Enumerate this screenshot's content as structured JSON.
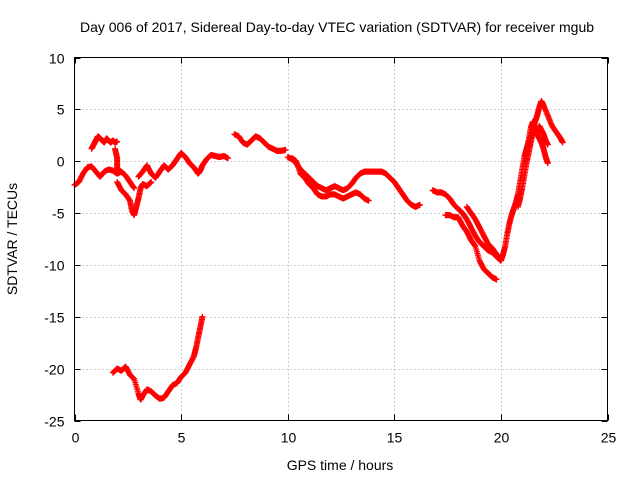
{
  "chart_data": {
    "type": "scatter",
    "title": "Day 006 of 2017, Sidereal Day-to-day VTEC variation (SDTVAR) for receiver mgub",
    "xlabel": "GPS time / hours",
    "ylabel": "SDTVAR / TECUs",
    "xlim": [
      0,
      25
    ],
    "ylim": [
      -25,
      10
    ],
    "xticks": [
      0,
      5,
      10,
      15,
      20,
      25
    ],
    "yticks": [
      -25,
      -20,
      -15,
      -10,
      -5,
      0,
      5,
      10
    ],
    "grid": true,
    "marker": "+",
    "color": "#ff0000",
    "series": [
      {
        "name": "seg1",
        "points": [
          [
            0.0,
            -2.3
          ],
          [
            0.2,
            -2.0
          ],
          [
            0.4,
            -1.2
          ],
          [
            0.6,
            -0.6
          ],
          [
            0.8,
            -0.5
          ],
          [
            1.0,
            -1.0
          ],
          [
            1.2,
            -1.5
          ],
          [
            1.4,
            -1.0
          ],
          [
            1.6,
            -0.8
          ],
          [
            1.8,
            -0.9
          ],
          [
            2.0,
            -1.2
          ],
          [
            2.2,
            -1.0
          ],
          [
            2.4,
            -1.4
          ],
          [
            2.6,
            -2.0
          ],
          [
            2.8,
            -2.6
          ]
        ]
      },
      {
        "name": "seg1b",
        "points": [
          [
            2.0,
            -2.0
          ],
          [
            2.2,
            -2.8
          ],
          [
            2.4,
            -3.2
          ],
          [
            2.6,
            -3.8
          ],
          [
            2.7,
            -4.8
          ],
          [
            2.8,
            -5.2
          ],
          [
            2.9,
            -4.4
          ],
          [
            3.0,
            -3.6
          ],
          [
            3.1,
            -2.6
          ],
          [
            3.2,
            -2.2
          ],
          [
            3.4,
            -2.4
          ],
          [
            3.6,
            -2.0
          ]
        ]
      },
      {
        "name": "seg2",
        "points": [
          [
            0.8,
            1.2
          ],
          [
            0.9,
            1.6
          ],
          [
            1.0,
            2.0
          ],
          [
            1.1,
            2.4
          ],
          [
            1.2,
            2.2
          ],
          [
            1.3,
            2.0
          ],
          [
            1.4,
            1.8
          ],
          [
            1.5,
            2.2
          ],
          [
            1.6,
            2.0
          ],
          [
            1.7,
            1.8
          ],
          [
            1.8,
            2.0
          ],
          [
            1.9,
            1.8
          ],
          [
            2.0,
            1.9
          ]
        ]
      },
      {
        "name": "seg2b",
        "points": [
          [
            1.9,
            1.2
          ],
          [
            2.0,
            0.3
          ],
          [
            2.0,
            -0.6
          ],
          [
            2.1,
            -1.0
          ]
        ]
      },
      {
        "name": "seg3",
        "points": [
          [
            3.0,
            -1.5
          ],
          [
            3.2,
            -1.0
          ],
          [
            3.4,
            -0.4
          ],
          [
            3.6,
            -1.2
          ],
          [
            3.8,
            -1.6
          ],
          [
            4.0,
            -1.0
          ],
          [
            4.2,
            -0.4
          ],
          [
            4.4,
            -0.8
          ],
          [
            4.6,
            -0.4
          ],
          [
            4.8,
            0.2
          ],
          [
            5.0,
            0.8
          ],
          [
            5.2,
            0.4
          ],
          [
            5.4,
            -0.2
          ],
          [
            5.6,
            -0.6
          ],
          [
            5.8,
            -1.2
          ],
          [
            5.9,
            -0.9
          ],
          [
            6.0,
            -0.4
          ],
          [
            6.2,
            0.2
          ],
          [
            6.4,
            0.6
          ],
          [
            6.6,
            0.5
          ],
          [
            6.8,
            0.4
          ],
          [
            7.0,
            0.5
          ],
          [
            7.2,
            0.3
          ]
        ]
      },
      {
        "name": "seg4",
        "points": [
          [
            1.8,
            -20.4
          ],
          [
            2.0,
            -20.0
          ],
          [
            2.2,
            -20.2
          ],
          [
            2.4,
            -19.8
          ],
          [
            2.6,
            -20.6
          ],
          [
            2.8,
            -21.0
          ],
          [
            3.0,
            -22.4
          ],
          [
            3.1,
            -23.0
          ],
          [
            3.2,
            -22.6
          ],
          [
            3.4,
            -22.0
          ],
          [
            3.6,
            -22.2
          ],
          [
            3.8,
            -22.6
          ],
          [
            4.0,
            -22.9
          ],
          [
            4.2,
            -22.8
          ],
          [
            4.4,
            -22.2
          ],
          [
            4.6,
            -21.6
          ],
          [
            4.8,
            -21.4
          ],
          [
            5.0,
            -20.8
          ],
          [
            5.2,
            -20.4
          ],
          [
            5.4,
            -19.6
          ],
          [
            5.6,
            -18.8
          ],
          [
            5.7,
            -18.0
          ],
          [
            5.8,
            -17.0
          ],
          [
            5.9,
            -16.0
          ],
          [
            6.0,
            -15.0
          ]
        ]
      },
      {
        "name": "seg5",
        "points": [
          [
            7.5,
            2.6
          ],
          [
            7.7,
            2.4
          ],
          [
            7.9,
            1.8
          ],
          [
            8.1,
            1.6
          ],
          [
            8.3,
            2.0
          ],
          [
            8.5,
            2.4
          ],
          [
            8.7,
            2.2
          ],
          [
            8.9,
            1.8
          ],
          [
            9.1,
            1.4
          ],
          [
            9.3,
            1.2
          ],
          [
            9.5,
            1.0
          ],
          [
            9.7,
            1.0
          ],
          [
            9.9,
            1.1
          ]
        ]
      },
      {
        "name": "seg6",
        "points": [
          [
            10.0,
            0.4
          ],
          [
            10.2,
            0.2
          ],
          [
            10.4,
            -0.2
          ],
          [
            10.6,
            -0.8
          ],
          [
            10.8,
            -1.2
          ],
          [
            11.0,
            -1.6
          ],
          [
            11.2,
            -2.0
          ],
          [
            11.4,
            -2.4
          ],
          [
            11.6,
            -2.6
          ],
          [
            11.8,
            -2.8
          ],
          [
            12.0,
            -2.6
          ],
          [
            12.2,
            -2.4
          ],
          [
            12.4,
            -2.6
          ],
          [
            12.6,
            -2.8
          ],
          [
            12.8,
            -2.6
          ],
          [
            13.0,
            -2.2
          ],
          [
            13.2,
            -1.6
          ],
          [
            13.4,
            -1.2
          ],
          [
            13.6,
            -1.0
          ],
          [
            13.8,
            -1.0
          ],
          [
            14.0,
            -1.0
          ],
          [
            14.2,
            -1.0
          ],
          [
            14.4,
            -1.0
          ],
          [
            14.6,
            -1.2
          ],
          [
            14.8,
            -1.6
          ],
          [
            15.0,
            -2.0
          ],
          [
            15.2,
            -2.6
          ],
          [
            15.4,
            -3.2
          ],
          [
            15.6,
            -3.8
          ],
          [
            15.8,
            -4.2
          ],
          [
            16.0,
            -4.4
          ],
          [
            16.2,
            -4.2
          ]
        ]
      },
      {
        "name": "seg6b",
        "points": [
          [
            10.2,
            0.3
          ],
          [
            10.4,
            0.0
          ],
          [
            10.6,
            -1.2
          ],
          [
            10.8,
            -1.6
          ],
          [
            11.0,
            -2.2
          ],
          [
            11.2,
            -2.6
          ],
          [
            11.4,
            -3.2
          ],
          [
            11.6,
            -3.4
          ],
          [
            11.8,
            -3.4
          ],
          [
            12.0,
            -3.2
          ],
          [
            12.2,
            -3.2
          ],
          [
            12.4,
            -3.4
          ],
          [
            12.6,
            -3.6
          ],
          [
            12.8,
            -3.4
          ],
          [
            13.0,
            -3.2
          ],
          [
            13.2,
            -3.0
          ],
          [
            13.4,
            -3.2
          ],
          [
            13.6,
            -3.6
          ],
          [
            13.8,
            -3.8
          ]
        ]
      },
      {
        "name": "seg7",
        "points": [
          [
            16.8,
            -2.8
          ],
          [
            17.0,
            -3.0
          ],
          [
            17.2,
            -3.0
          ],
          [
            17.4,
            -3.2
          ],
          [
            17.6,
            -3.6
          ],
          [
            17.8,
            -4.2
          ],
          [
            18.0,
            -4.6
          ],
          [
            18.2,
            -5.0
          ],
          [
            18.4,
            -5.6
          ],
          [
            18.6,
            -6.4
          ],
          [
            18.8,
            -7.2
          ],
          [
            19.0,
            -7.8
          ],
          [
            19.2,
            -8.2
          ],
          [
            19.4,
            -8.6
          ],
          [
            19.6,
            -8.8
          ],
          [
            19.8,
            -9.2
          ],
          [
            20.0,
            -9.6
          ],
          [
            20.1,
            -9.0
          ],
          [
            20.2,
            -8.2
          ],
          [
            20.3,
            -7.0
          ],
          [
            20.4,
            -6.0
          ],
          [
            20.5,
            -5.2
          ],
          [
            20.6,
            -4.6
          ],
          [
            20.7,
            -4.0
          ],
          [
            20.8,
            -3.2
          ],
          [
            20.9,
            -2.0
          ],
          [
            21.0,
            -0.8
          ],
          [
            21.1,
            0.4
          ],
          [
            21.2,
            1.2
          ],
          [
            21.3,
            1.8
          ],
          [
            21.4,
            2.4
          ],
          [
            21.5,
            3.0
          ],
          [
            21.6,
            3.8
          ],
          [
            21.7,
            4.4
          ],
          [
            21.8,
            5.2
          ],
          [
            21.9,
            5.8
          ],
          [
            22.0,
            5.4
          ],
          [
            22.2,
            4.4
          ],
          [
            22.4,
            3.4
          ],
          [
            22.6,
            2.8
          ],
          [
            22.8,
            2.2
          ],
          [
            22.9,
            1.8
          ]
        ]
      },
      {
        "name": "seg7b",
        "points": [
          [
            17.4,
            -5.2
          ],
          [
            17.6,
            -5.2
          ],
          [
            17.8,
            -5.4
          ],
          [
            18.0,
            -5.4
          ],
          [
            18.2,
            -6.2
          ],
          [
            18.4,
            -6.8
          ],
          [
            18.6,
            -7.6
          ],
          [
            18.8,
            -8.2
          ],
          [
            19.0,
            -9.6
          ],
          [
            19.2,
            -10.4
          ],
          [
            19.4,
            -10.8
          ],
          [
            19.6,
            -11.2
          ],
          [
            19.8,
            -11.4
          ]
        ]
      },
      {
        "name": "seg7c",
        "points": [
          [
            18.4,
            -4.4
          ],
          [
            18.6,
            -5.0
          ],
          [
            18.8,
            -5.6
          ],
          [
            19.0,
            -6.4
          ],
          [
            19.2,
            -7.2
          ],
          [
            19.4,
            -8.0
          ],
          [
            19.6,
            -8.4
          ],
          [
            19.8,
            -9.0
          ],
          [
            20.0,
            -9.4
          ]
        ]
      },
      {
        "name": "seg7d",
        "points": [
          [
            20.8,
            -4.4
          ],
          [
            20.9,
            -3.6
          ],
          [
            21.0,
            -2.6
          ],
          [
            21.1,
            -1.4
          ],
          [
            21.2,
            -0.2
          ],
          [
            21.3,
            0.8
          ],
          [
            21.4,
            1.8
          ],
          [
            21.5,
            2.8
          ],
          [
            21.6,
            3.0
          ],
          [
            21.7,
            2.6
          ],
          [
            21.8,
            2.2
          ],
          [
            21.9,
            1.8
          ],
          [
            22.0,
            1.2
          ],
          [
            22.1,
            0.4
          ],
          [
            22.2,
            -0.2
          ]
        ]
      },
      {
        "name": "seg7e",
        "points": [
          [
            21.2,
            1.0
          ],
          [
            21.3,
            2.0
          ],
          [
            21.4,
            3.2
          ],
          [
            21.5,
            3.8
          ],
          [
            21.6,
            3.2
          ],
          [
            21.7,
            2.8
          ],
          [
            21.8,
            3.4
          ],
          [
            21.9,
            3.0
          ],
          [
            22.0,
            2.6
          ],
          [
            22.1,
            2.0
          ],
          [
            22.2,
            1.6
          ]
        ]
      }
    ]
  }
}
